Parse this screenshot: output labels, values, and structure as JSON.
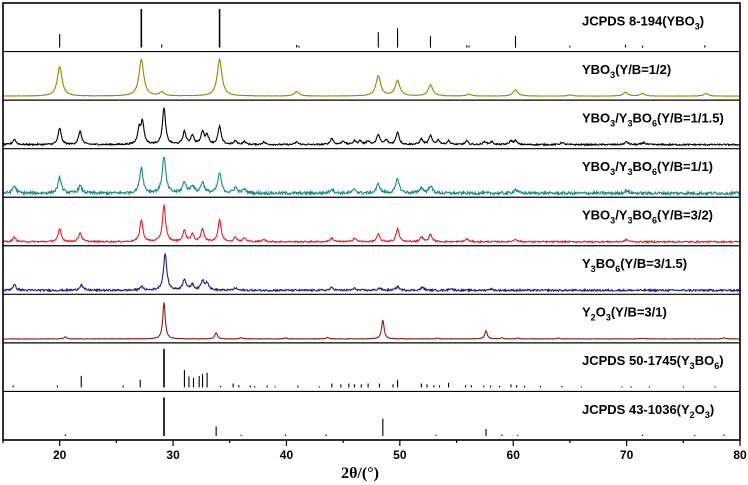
{
  "chart_data": {
    "type": "line",
    "title": "",
    "xlabel": "2θ/(°)",
    "ylabel": "",
    "xlim": [
      15,
      80
    ],
    "x_ticks": [
      20,
      30,
      40,
      50,
      60,
      70,
      80
    ],
    "panels": [
      {
        "name": "jcpds-ybo3",
        "kind": "sticks",
        "label": {
          "main": "JCPDS 8-194(YBO",
          "sub": "3",
          "tail": ")"
        },
        "color": "#000000",
        "peaks": [
          [
            20.0,
            0.35
          ],
          [
            27.2,
            1.0
          ],
          [
            29.0,
            0.08
          ],
          [
            34.1,
            1.0
          ],
          [
            40.9,
            0.07
          ],
          [
            41.1,
            0.05
          ],
          [
            48.1,
            0.4
          ],
          [
            49.8,
            0.5
          ],
          [
            52.7,
            0.3
          ],
          [
            55.9,
            0.06
          ],
          [
            56.1,
            0.05
          ],
          [
            60.2,
            0.3
          ],
          [
            65.0,
            0.05
          ],
          [
            69.9,
            0.07
          ],
          [
            71.4,
            0.05
          ],
          [
            76.9,
            0.06
          ]
        ]
      },
      {
        "name": "ybo3-1-2",
        "kind": "profile",
        "label": {
          "main": "YBO",
          "sub": "3",
          "tail": "(Y/B=1/2)"
        },
        "color": "#8b8b00",
        "noise": 0.004,
        "width": 0.25,
        "peaks": [
          [
            20.0,
            0.8
          ],
          [
            27.2,
            1.0
          ],
          [
            29.0,
            0.1
          ],
          [
            34.1,
            1.0
          ],
          [
            40.9,
            0.12
          ],
          [
            48.1,
            0.55
          ],
          [
            49.8,
            0.42
          ],
          [
            52.7,
            0.3
          ],
          [
            56.1,
            0.05
          ],
          [
            60.2,
            0.17
          ],
          [
            65.0,
            0.03
          ],
          [
            69.9,
            0.1
          ],
          [
            71.4,
            0.07
          ],
          [
            77.0,
            0.07
          ]
        ]
      },
      {
        "name": "ybo3-y3bo6-1-1-5",
        "kind": "profile",
        "label": {
          "main": "YBO",
          "sub": "3",
          "mid": "/Y",
          "sub2": "3",
          "mid2": "BO",
          "sub3": "6",
          "tail": "(Y/B=1/1.5)"
        },
        "color": "#000000",
        "noise": 0.02,
        "width": 0.16,
        "peaks": [
          [
            16.0,
            0.15
          ],
          [
            20.0,
            0.45
          ],
          [
            21.8,
            0.37
          ],
          [
            27.0,
            0.4
          ],
          [
            27.3,
            0.6
          ],
          [
            29.2,
            1.0
          ],
          [
            31.0,
            0.35
          ],
          [
            31.7,
            0.25
          ],
          [
            32.6,
            0.35
          ],
          [
            33.0,
            0.25
          ],
          [
            34.1,
            0.5
          ],
          [
            35.5,
            0.1
          ],
          [
            36.3,
            0.08
          ],
          [
            38.0,
            0.07
          ],
          [
            40.9,
            0.07
          ],
          [
            44.0,
            0.17
          ],
          [
            45.0,
            0.1
          ],
          [
            46.0,
            0.1
          ],
          [
            46.5,
            0.1
          ],
          [
            47.2,
            0.1
          ],
          [
            48.1,
            0.28
          ],
          [
            48.8,
            0.12
          ],
          [
            49.8,
            0.35
          ],
          [
            51.9,
            0.15
          ],
          [
            52.7,
            0.24
          ],
          [
            53.4,
            0.12
          ],
          [
            54.3,
            0.1
          ],
          [
            55.9,
            0.1
          ],
          [
            57.5,
            0.08
          ],
          [
            58.1,
            0.08
          ],
          [
            59.8,
            0.1
          ],
          [
            60.2,
            0.1
          ],
          [
            64.3,
            0.06
          ],
          [
            70.0,
            0.08
          ],
          [
            71.5,
            0.06
          ]
        ]
      },
      {
        "name": "ybo3-y3bo6-1-1",
        "kind": "profile",
        "label": {
          "main": "YBO",
          "sub": "3",
          "mid": "/Y",
          "sub2": "3",
          "mid2": "BO",
          "sub3": "6",
          "tail": "(Y/B=1/1)"
        },
        "color": "#1a8a8a",
        "noise": 0.04,
        "width": 0.18,
        "peaks": [
          [
            16.0,
            0.2
          ],
          [
            20.0,
            0.42
          ],
          [
            21.8,
            0.2
          ],
          [
            27.2,
            0.7
          ],
          [
            29.2,
            1.0
          ],
          [
            31.0,
            0.3
          ],
          [
            31.7,
            0.2
          ],
          [
            32.6,
            0.3
          ],
          [
            34.1,
            0.55
          ],
          [
            35.5,
            0.15
          ],
          [
            36.3,
            0.1
          ],
          [
            44.0,
            0.12
          ],
          [
            46.0,
            0.1
          ],
          [
            48.1,
            0.25
          ],
          [
            49.8,
            0.4
          ],
          [
            51.9,
            0.15
          ],
          [
            52.7,
            0.2
          ],
          [
            60.2,
            0.1
          ],
          [
            70.0,
            0.07
          ]
        ]
      },
      {
        "name": "ybo3-y3bo6-3-2",
        "kind": "profile",
        "label": {
          "main": "YBO",
          "sub": "3",
          "mid": "/Y",
          "sub2": "3",
          "mid2": "BO",
          "sub3": "6",
          "tail": "(Y/B=3/2)"
        },
        "color": "#e8202a",
        "noise": 0.02,
        "width": 0.16,
        "peaks": [
          [
            16.0,
            0.12
          ],
          [
            20.0,
            0.35
          ],
          [
            21.8,
            0.25
          ],
          [
            27.2,
            0.6
          ],
          [
            29.2,
            1.0
          ],
          [
            31.0,
            0.3
          ],
          [
            31.7,
            0.2
          ],
          [
            32.6,
            0.35
          ],
          [
            34.1,
            0.6
          ],
          [
            35.5,
            0.12
          ],
          [
            36.3,
            0.1
          ],
          [
            38.0,
            0.06
          ],
          [
            44.0,
            0.1
          ],
          [
            46.0,
            0.1
          ],
          [
            48.1,
            0.2
          ],
          [
            49.8,
            0.35
          ],
          [
            51.9,
            0.13
          ],
          [
            52.7,
            0.2
          ],
          [
            55.9,
            0.08
          ],
          [
            60.2,
            0.08
          ],
          [
            70.0,
            0.06
          ]
        ]
      },
      {
        "name": "y3bo6-3-1-5",
        "kind": "profile",
        "label": {
          "main": "Y",
          "sub": "3",
          "mid": "BO",
          "sub2": "6",
          "tail": "(Y/B=3/1.5)"
        },
        "color": "#1c1c8c",
        "noise": 0.025,
        "width": 0.17,
        "peaks": [
          [
            16.0,
            0.15
          ],
          [
            21.9,
            0.15
          ],
          [
            27.2,
            0.1
          ],
          [
            29.3,
            1.0
          ],
          [
            31.0,
            0.3
          ],
          [
            31.7,
            0.15
          ],
          [
            32.6,
            0.25
          ],
          [
            33.0,
            0.2
          ],
          [
            35.5,
            0.06
          ],
          [
            44.0,
            0.07
          ],
          [
            46.0,
            0.05
          ],
          [
            48.2,
            0.06
          ],
          [
            49.8,
            0.1
          ],
          [
            52.0,
            0.08
          ],
          [
            54.5,
            0.05
          ],
          [
            58.0,
            0.04
          ]
        ]
      },
      {
        "name": "y2o3-3-1",
        "kind": "profile",
        "label": {
          "main": "Y",
          "sub": "2",
          "mid": "O",
          "sub2": "3",
          "tail": "(Y/B=3/1)"
        },
        "color": "#8b1a1a",
        "noise": 0.006,
        "width": 0.13,
        "peaks": [
          [
            20.5,
            0.06
          ],
          [
            29.2,
            1.0
          ],
          [
            33.8,
            0.17
          ],
          [
            36.0,
            0.03
          ],
          [
            39.9,
            0.03
          ],
          [
            43.6,
            0.04
          ],
          [
            48.5,
            0.52
          ],
          [
            53.3,
            0.02
          ],
          [
            57.6,
            0.22
          ],
          [
            59.0,
            0.03
          ],
          [
            60.4,
            0.02
          ],
          [
            64.0,
            0.02
          ],
          [
            71.4,
            0.02
          ],
          [
            78.6,
            0.03
          ]
        ]
      },
      {
        "name": "jcpds-y3bo6",
        "kind": "sticks",
        "label": {
          "main": "JCPDS 50-1745(Y",
          "sub": "3",
          "mid": "BO",
          "sub2": "6",
          "tail": ")"
        },
        "color": "#000000",
        "peaks": [
          [
            15.9,
            0.05
          ],
          [
            19.8,
            0.05
          ],
          [
            21.9,
            0.3
          ],
          [
            25.6,
            0.05
          ],
          [
            27.1,
            0.2
          ],
          [
            29.2,
            1.0
          ],
          [
            31.0,
            0.45
          ],
          [
            31.4,
            0.28
          ],
          [
            31.8,
            0.25
          ],
          [
            32.3,
            0.3
          ],
          [
            32.6,
            0.35
          ],
          [
            33.0,
            0.38
          ],
          [
            34.2,
            0.04
          ],
          [
            35.3,
            0.1
          ],
          [
            35.8,
            0.06
          ],
          [
            36.8,
            0.05
          ],
          [
            37.2,
            0.04
          ],
          [
            38.3,
            0.05
          ],
          [
            39.0,
            0.03
          ],
          [
            41.0,
            0.05
          ],
          [
            42.9,
            0.03
          ],
          [
            44.0,
            0.1
          ],
          [
            44.8,
            0.08
          ],
          [
            45.5,
            0.1
          ],
          [
            46.0,
            0.08
          ],
          [
            46.6,
            0.08
          ],
          [
            47.2,
            0.1
          ],
          [
            48.2,
            0.1
          ],
          [
            49.4,
            0.08
          ],
          [
            49.8,
            0.2
          ],
          [
            51.9,
            0.1
          ],
          [
            52.4,
            0.08
          ],
          [
            53.0,
            0.06
          ],
          [
            53.5,
            0.05
          ],
          [
            54.3,
            0.12
          ],
          [
            55.8,
            0.06
          ],
          [
            56.3,
            0.06
          ],
          [
            57.4,
            0.05
          ],
          [
            58.0,
            0.05
          ],
          [
            58.8,
            0.04
          ],
          [
            59.8,
            0.08
          ],
          [
            60.3,
            0.06
          ],
          [
            61.0,
            0.04
          ],
          [
            62.4,
            0.04
          ],
          [
            64.3,
            0.04
          ],
          [
            66.0,
            0.03
          ],
          [
            69.6,
            0.03
          ],
          [
            70.4,
            0.03
          ],
          [
            72.0,
            0.03
          ],
          [
            75.0,
            0.03
          ],
          [
            77.8,
            0.03
          ]
        ]
      },
      {
        "name": "jcpds-y2o3",
        "kind": "sticks",
        "label": {
          "main": "JCPDS 43-1036(Y",
          "sub": "2",
          "mid": "O",
          "sub2": "3",
          "tail": ")"
        },
        "color": "#000000",
        "peaks": [
          [
            20.5,
            0.04
          ],
          [
            29.2,
            1.0
          ],
          [
            33.8,
            0.25
          ],
          [
            36.0,
            0.03
          ],
          [
            39.9,
            0.04
          ],
          [
            43.5,
            0.04
          ],
          [
            48.5,
            0.45
          ],
          [
            53.2,
            0.03
          ],
          [
            57.6,
            0.18
          ],
          [
            59.0,
            0.04
          ],
          [
            60.4,
            0.03
          ],
          [
            71.4,
            0.03
          ],
          [
            76.0,
            0.03
          ],
          [
            78.6,
            0.04
          ]
        ]
      }
    ],
    "grid": false,
    "legend": "labels-inside-panels"
  }
}
